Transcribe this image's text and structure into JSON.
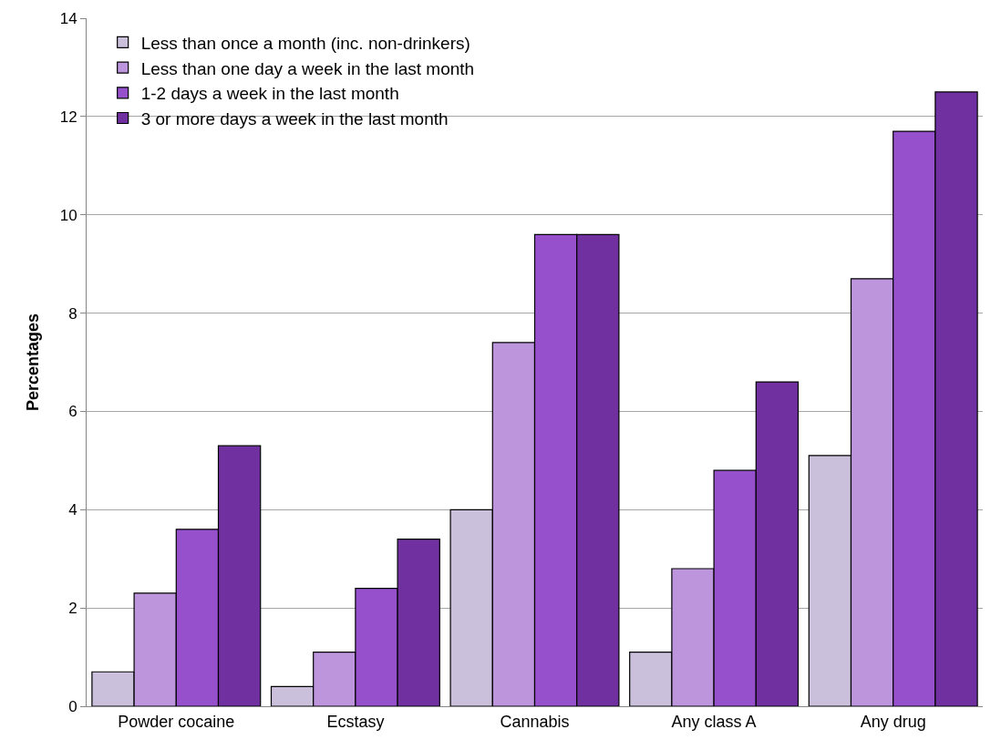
{
  "chart_data": {
    "type": "bar",
    "ylabel": "Percentages",
    "categories": [
      "Powder cocaine",
      "Ecstasy",
      "Cannabis",
      "Any class A",
      "Any drug"
    ],
    "series": [
      {
        "name": "Less than once a month (inc. non-drinkers)",
        "color": "#cbc0dc",
        "values": [
          0.7,
          0.4,
          4.0,
          1.1,
          5.1
        ]
      },
      {
        "name": "Less than one day a week in the last month",
        "color": "#bd95dd",
        "values": [
          2.3,
          1.1,
          7.4,
          2.8,
          8.7
        ]
      },
      {
        "name": "1-2 days a week in the last month",
        "color": "#9650cc",
        "values": [
          3.6,
          2.4,
          9.6,
          4.8,
          11.7
        ]
      },
      {
        "name": "3 or more days a week in the last month",
        "color": "#7030a0",
        "values": [
          5.3,
          3.4,
          9.6,
          6.6,
          12.5
        ]
      }
    ],
    "ylim": [
      0,
      14
    ],
    "yticks": [
      0,
      2,
      4,
      6,
      8,
      10,
      12,
      14
    ],
    "grid": "y",
    "legend": "top left"
  }
}
